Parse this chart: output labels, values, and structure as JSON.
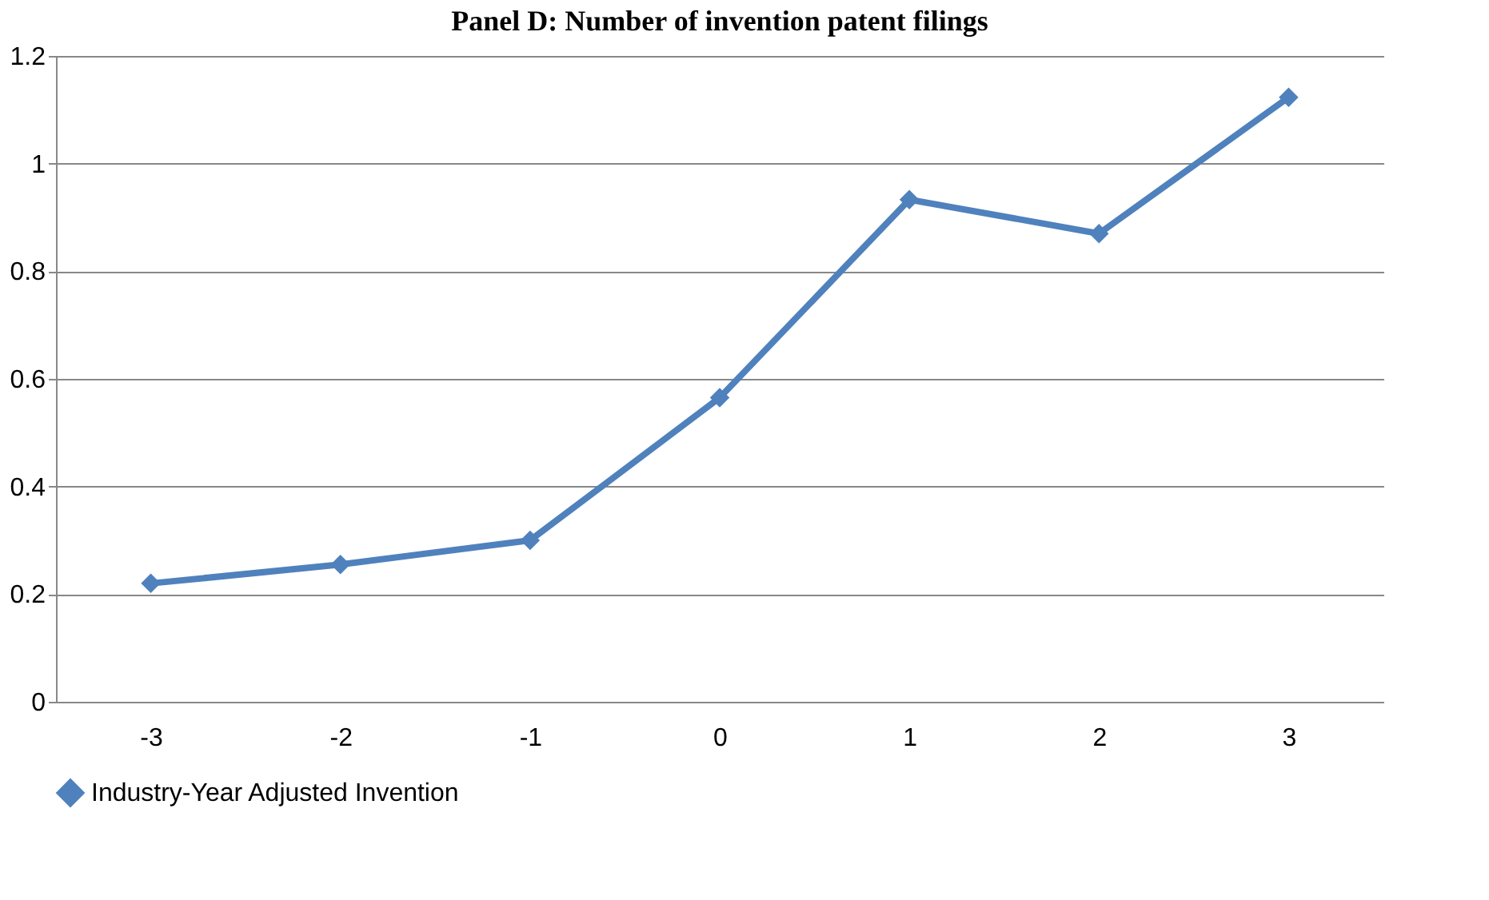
{
  "chart_data": {
    "type": "line",
    "title": "Panel D: Number of invention patent filings",
    "categories": [
      "-3",
      "-2",
      "-1",
      "0",
      "1",
      "2",
      "3"
    ],
    "series": [
      {
        "name": "Industry-Year Adjusted Invention",
        "color": "#4f81bd",
        "values": [
          0.22,
          0.255,
          0.3,
          0.565,
          0.933,
          0.87,
          1.123
        ]
      }
    ],
    "ylim": [
      0,
      1.2
    ],
    "yticks": [
      0,
      0.2,
      0.4,
      0.6,
      0.8,
      1,
      1.2
    ],
    "grid": "y",
    "legend": "bottom",
    "marker": "diamond",
    "line_style": "solid"
  }
}
